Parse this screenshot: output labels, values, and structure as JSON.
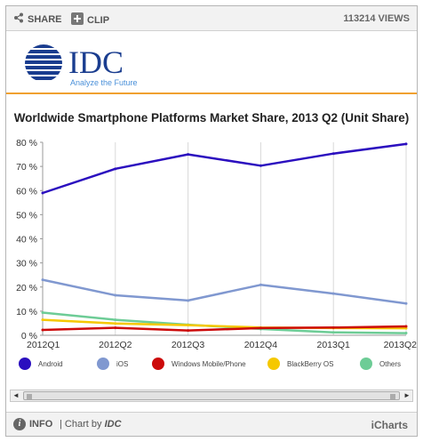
{
  "toolbar": {
    "share_label": "SHARE",
    "clip_label": "CLIP",
    "views_label": "113214 VIEWS"
  },
  "logo": {
    "wordmark": "IDC",
    "tagline": "Analyze the Future"
  },
  "footer": {
    "info_label": "INFO",
    "chart_by_prefix": "| Chart by",
    "chart_by_brand": "IDC",
    "brand_link": "iCharts"
  },
  "icons": {
    "share": "share-icon",
    "clip": "plus-icon",
    "info": "info-icon"
  },
  "colors": {
    "accent_line": "#f0a030",
    "logo_blue": "#1a3d8f",
    "tagline": "#4a90d9"
  },
  "chart_data": {
    "type": "line",
    "title": "Worldwide Smartphone Platforms Market Share, 2013 Q2 (Unit Share)",
    "categories": [
      "2012Q1",
      "2012Q2",
      "2012Q3",
      "2012Q4",
      "2013Q1",
      "2013Q2"
    ],
    "y_ticks": [
      "80 %",
      "70 %",
      "60 %",
      "50 %",
      "40 %",
      "30 %",
      "20 %",
      "10 %",
      "0 %"
    ],
    "ylim": [
      0,
      80
    ],
    "grid": "vertical",
    "legend_position": "bottom",
    "series": [
      {
        "name": "Android",
        "color": "#2b0fbf",
        "values": [
          59.0,
          69.0,
          75.0,
          70.3,
          75.3,
          79.3
        ]
      },
      {
        "name": "iOS",
        "color": "#8098d0",
        "values": [
          23.0,
          16.6,
          14.4,
          20.9,
          17.3,
          13.2
        ]
      },
      {
        "name": "Windows Mobile/Phone",
        "color": "#cc0a0a",
        "values": [
          2.2,
          3.1,
          2.0,
          3.0,
          3.2,
          3.7
        ]
      },
      {
        "name": "BlackBerry OS",
        "color": "#f5c800",
        "values": [
          6.4,
          4.9,
          4.2,
          3.2,
          3.0,
          2.9
        ]
      },
      {
        "name": "Others",
        "color": "#6dcc96",
        "values": [
          9.4,
          6.4,
          4.4,
          2.6,
          1.2,
          0.9
        ]
      }
    ]
  }
}
